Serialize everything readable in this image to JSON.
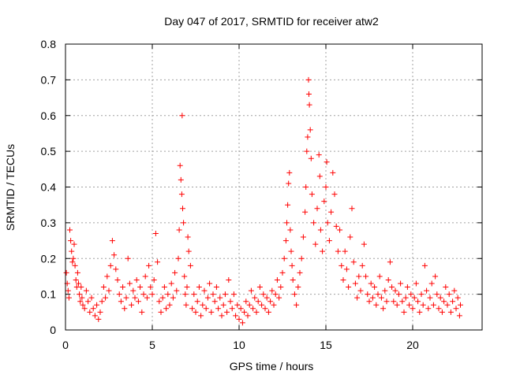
{
  "chart_data": {
    "type": "scatter",
    "title": "Day 047 of 2017, SRMTID for receiver atw2",
    "xlabel": "GPS time / hours",
    "ylabel": "SRMTID / TECUs",
    "xlim": [
      0,
      24
    ],
    "ylim": [
      0,
      0.8
    ],
    "xticks": [
      0,
      5,
      10,
      15,
      20
    ],
    "xtick_labels": [
      "0",
      "5",
      "10",
      "15",
      "20"
    ],
    "yticks": [
      0,
      0.1,
      0.2,
      0.3,
      0.4,
      0.5,
      0.6,
      0.7,
      0.8
    ],
    "ytick_labels": [
      "0",
      "0.1",
      "0.2",
      "0.3",
      "0.4",
      "0.5",
      "0.6",
      "0.7",
      "0.8"
    ],
    "grid": true,
    "marker": "+",
    "color": "#ff0000",
    "series": [
      {
        "name": "SRMTID",
        "points": [
          [
            0.05,
            0.16
          ],
          [
            0.1,
            0.13
          ],
          [
            0.15,
            0.11
          ],
          [
            0.2,
            0.09
          ],
          [
            0.25,
            0.28
          ],
          [
            0.3,
            0.25
          ],
          [
            0.35,
            0.22
          ],
          [
            0.4,
            0.19
          ],
          [
            0.45,
            0.2
          ],
          [
            0.5,
            0.24
          ],
          [
            0.55,
            0.18
          ],
          [
            0.6,
            0.14
          ],
          [
            0.65,
            0.12
          ],
          [
            0.7,
            0.16
          ],
          [
            0.75,
            0.13
          ],
          [
            0.8,
            0.1
          ],
          [
            0.85,
            0.08
          ],
          [
            0.9,
            0.12
          ],
          [
            0.95,
            0.09
          ],
          [
            1.0,
            0.07
          ],
          [
            1.1,
            0.06
          ],
          [
            1.2,
            0.11
          ],
          [
            1.3,
            0.08
          ],
          [
            1.4,
            0.05
          ],
          [
            1.5,
            0.09
          ],
          [
            1.6,
            0.06
          ],
          [
            1.7,
            0.04
          ],
          [
            1.8,
            0.07
          ],
          [
            1.9,
            0.03
          ],
          [
            2.0,
            0.05
          ],
          [
            2.1,
            0.08
          ],
          [
            2.2,
            0.12
          ],
          [
            2.3,
            0.09
          ],
          [
            2.4,
            0.15
          ],
          [
            2.5,
            0.11
          ],
          [
            2.6,
            0.18
          ],
          [
            2.7,
            0.25
          ],
          [
            2.8,
            0.21
          ],
          [
            2.9,
            0.17
          ],
          [
            3.0,
            0.14
          ],
          [
            3.1,
            0.1
          ],
          [
            3.2,
            0.08
          ],
          [
            3.3,
            0.12
          ],
          [
            3.4,
            0.06
          ],
          [
            3.5,
            0.09
          ],
          [
            3.6,
            0.2
          ],
          [
            3.7,
            0.13
          ],
          [
            3.8,
            0.07
          ],
          [
            3.9,
            0.11
          ],
          [
            4.0,
            0.09
          ],
          [
            4.1,
            0.14
          ],
          [
            4.2,
            0.08
          ],
          [
            4.3,
            0.12
          ],
          [
            4.4,
            0.05
          ],
          [
            4.5,
            0.1
          ],
          [
            4.6,
            0.15
          ],
          [
            4.7,
            0.09
          ],
          [
            4.8,
            0.18
          ],
          [
            4.9,
            0.12
          ],
          [
            5.0,
            0.1
          ],
          [
            5.1,
            0.14
          ],
          [
            5.2,
            0.27
          ],
          [
            5.3,
            0.19
          ],
          [
            5.4,
            0.08
          ],
          [
            5.5,
            0.05
          ],
          [
            5.6,
            0.09
          ],
          [
            5.7,
            0.12
          ],
          [
            5.8,
            0.06
          ],
          [
            5.9,
            0.1
          ],
          [
            6.0,
            0.07
          ],
          [
            6.1,
            0.13
          ],
          [
            6.2,
            0.09
          ],
          [
            6.3,
            0.16
          ],
          [
            6.4,
            0.11
          ],
          [
            6.5,
            0.2
          ],
          [
            6.55,
            0.28
          ],
          [
            6.6,
            0.46
          ],
          [
            6.65,
            0.42
          ],
          [
            6.7,
            0.38
          ],
          [
            6.72,
            0.6
          ],
          [
            6.75,
            0.34
          ],
          [
            6.8,
            0.3
          ],
          [
            6.85,
            0.15
          ],
          [
            6.9,
            0.1
          ],
          [
            6.95,
            0.07
          ],
          [
            7.0,
            0.12
          ],
          [
            7.05,
            0.26
          ],
          [
            7.1,
            0.22
          ],
          [
            7.2,
            0.18
          ],
          [
            7.3,
            0.06
          ],
          [
            7.4,
            0.1
          ],
          [
            7.5,
            0.05
          ],
          [
            7.6,
            0.08
          ],
          [
            7.7,
            0.12
          ],
          [
            7.8,
            0.04
          ],
          [
            7.9,
            0.07
          ],
          [
            8.0,
            0.11
          ],
          [
            8.1,
            0.06
          ],
          [
            8.2,
            0.09
          ],
          [
            8.3,
            0.13
          ],
          [
            8.4,
            0.05
          ],
          [
            8.5,
            0.1
          ],
          [
            8.6,
            0.08
          ],
          [
            8.7,
            0.12
          ],
          [
            8.8,
            0.06
          ],
          [
            8.9,
            0.09
          ],
          [
            9.0,
            0.04
          ],
          [
            9.1,
            0.07
          ],
          [
            9.2,
            0.1
          ],
          [
            9.3,
            0.05
          ],
          [
            9.4,
            0.14
          ],
          [
            9.5,
            0.08
          ],
          [
            9.6,
            0.06
          ],
          [
            9.7,
            0.1
          ],
          [
            9.8,
            0.04
          ],
          [
            9.9,
            0.07
          ],
          [
            10.0,
            0.03
          ],
          [
            10.1,
            0.06
          ],
          [
            10.2,
            0.02
          ],
          [
            10.3,
            0.05
          ],
          [
            10.4,
            0.08
          ],
          [
            10.5,
            0.04
          ],
          [
            10.6,
            0.07
          ],
          [
            10.7,
            0.11
          ],
          [
            10.8,
            0.06
          ],
          [
            10.9,
            0.09
          ],
          [
            11.0,
            0.05
          ],
          [
            11.1,
            0.08
          ],
          [
            11.2,
            0.12
          ],
          [
            11.3,
            0.07
          ],
          [
            11.4,
            0.1
          ],
          [
            11.5,
            0.06
          ],
          [
            11.6,
            0.09
          ],
          [
            11.7,
            0.05
          ],
          [
            11.8,
            0.08
          ],
          [
            11.9,
            0.11
          ],
          [
            12.0,
            0.07
          ],
          [
            12.1,
            0.1
          ],
          [
            12.2,
            0.14
          ],
          [
            12.3,
            0.09
          ],
          [
            12.4,
            0.12
          ],
          [
            12.5,
            0.16
          ],
          [
            12.6,
            0.2
          ],
          [
            12.7,
            0.25
          ],
          [
            12.75,
            0.3
          ],
          [
            12.8,
            0.35
          ],
          [
            12.85,
            0.41
          ],
          [
            12.9,
            0.44
          ],
          [
            12.95,
            0.28
          ],
          [
            13.0,
            0.22
          ],
          [
            13.05,
            0.18
          ],
          [
            13.1,
            0.14
          ],
          [
            13.2,
            0.1
          ],
          [
            13.3,
            0.07
          ],
          [
            13.4,
            0.12
          ],
          [
            13.5,
            0.16
          ],
          [
            13.6,
            0.2
          ],
          [
            13.7,
            0.26
          ],
          [
            13.8,
            0.33
          ],
          [
            13.85,
            0.4
          ],
          [
            13.9,
            0.5
          ],
          [
            13.95,
            0.54
          ],
          [
            14.0,
            0.7
          ],
          [
            14.02,
            0.66
          ],
          [
            14.05,
            0.63
          ],
          [
            14.1,
            0.56
          ],
          [
            14.15,
            0.48
          ],
          [
            14.2,
            0.38
          ],
          [
            14.3,
            0.3
          ],
          [
            14.4,
            0.24
          ],
          [
            14.5,
            0.34
          ],
          [
            14.6,
            0.49
          ],
          [
            14.65,
            0.43
          ],
          [
            14.7,
            0.28
          ],
          [
            14.8,
            0.22
          ],
          [
            14.9,
            0.36
          ],
          [
            15.0,
            0.4
          ],
          [
            15.05,
            0.47
          ],
          [
            15.1,
            0.3
          ],
          [
            15.2,
            0.25
          ],
          [
            15.3,
            0.33
          ],
          [
            15.4,
            0.44
          ],
          [
            15.5,
            0.38
          ],
          [
            15.6,
            0.29
          ],
          [
            15.7,
            0.22
          ],
          [
            15.8,
            0.28
          ],
          [
            15.9,
            0.18
          ],
          [
            16.0,
            0.14
          ],
          [
            16.1,
            0.22
          ],
          [
            16.2,
            0.17
          ],
          [
            16.3,
            0.12
          ],
          [
            16.4,
            0.26
          ],
          [
            16.5,
            0.34
          ],
          [
            16.6,
            0.19
          ],
          [
            16.7,
            0.13
          ],
          [
            16.8,
            0.09
          ],
          [
            16.9,
            0.15
          ],
          [
            17.0,
            0.11
          ],
          [
            17.1,
            0.18
          ],
          [
            17.2,
            0.24
          ],
          [
            17.3,
            0.15
          ],
          [
            17.4,
            0.1
          ],
          [
            17.5,
            0.08
          ],
          [
            17.6,
            0.13
          ],
          [
            17.7,
            0.09
          ],
          [
            17.8,
            0.12
          ],
          [
            17.9,
            0.07
          ],
          [
            18.0,
            0.1
          ],
          [
            18.1,
            0.15
          ],
          [
            18.2,
            0.09
          ],
          [
            18.3,
            0.06
          ],
          [
            18.4,
            0.11
          ],
          [
            18.5,
            0.08
          ],
          [
            18.6,
            0.14
          ],
          [
            18.7,
            0.19
          ],
          [
            18.8,
            0.12
          ],
          [
            18.9,
            0.08
          ],
          [
            19.0,
            0.11
          ],
          [
            19.1,
            0.07
          ],
          [
            19.2,
            0.1
          ],
          [
            19.3,
            0.13
          ],
          [
            19.4,
            0.08
          ],
          [
            19.5,
            0.05
          ],
          [
            19.6,
            0.09
          ],
          [
            19.7,
            0.12
          ],
          [
            19.8,
            0.07
          ],
          [
            19.9,
            0.1
          ],
          [
            20.0,
            0.06
          ],
          [
            20.1,
            0.09
          ],
          [
            20.2,
            0.13
          ],
          [
            20.3,
            0.08
          ],
          [
            20.4,
            0.05
          ],
          [
            20.5,
            0.1
          ],
          [
            20.6,
            0.07
          ],
          [
            20.7,
            0.18
          ],
          [
            20.8,
            0.11
          ],
          [
            20.9,
            0.06
          ],
          [
            21.0,
            0.09
          ],
          [
            21.1,
            0.13
          ],
          [
            21.2,
            0.07
          ],
          [
            21.3,
            0.15
          ],
          [
            21.4,
            0.1
          ],
          [
            21.5,
            0.06
          ],
          [
            21.6,
            0.09
          ],
          [
            21.7,
            0.05
          ],
          [
            21.8,
            0.08
          ],
          [
            21.9,
            0.12
          ],
          [
            22.0,
            0.07
          ],
          [
            22.1,
            0.1
          ],
          [
            22.2,
            0.05
          ],
          [
            22.3,
            0.08
          ],
          [
            22.4,
            0.11
          ],
          [
            22.5,
            0.06
          ],
          [
            22.6,
            0.09
          ],
          [
            22.7,
            0.04
          ],
          [
            22.75,
            0.07
          ]
        ]
      }
    ]
  }
}
